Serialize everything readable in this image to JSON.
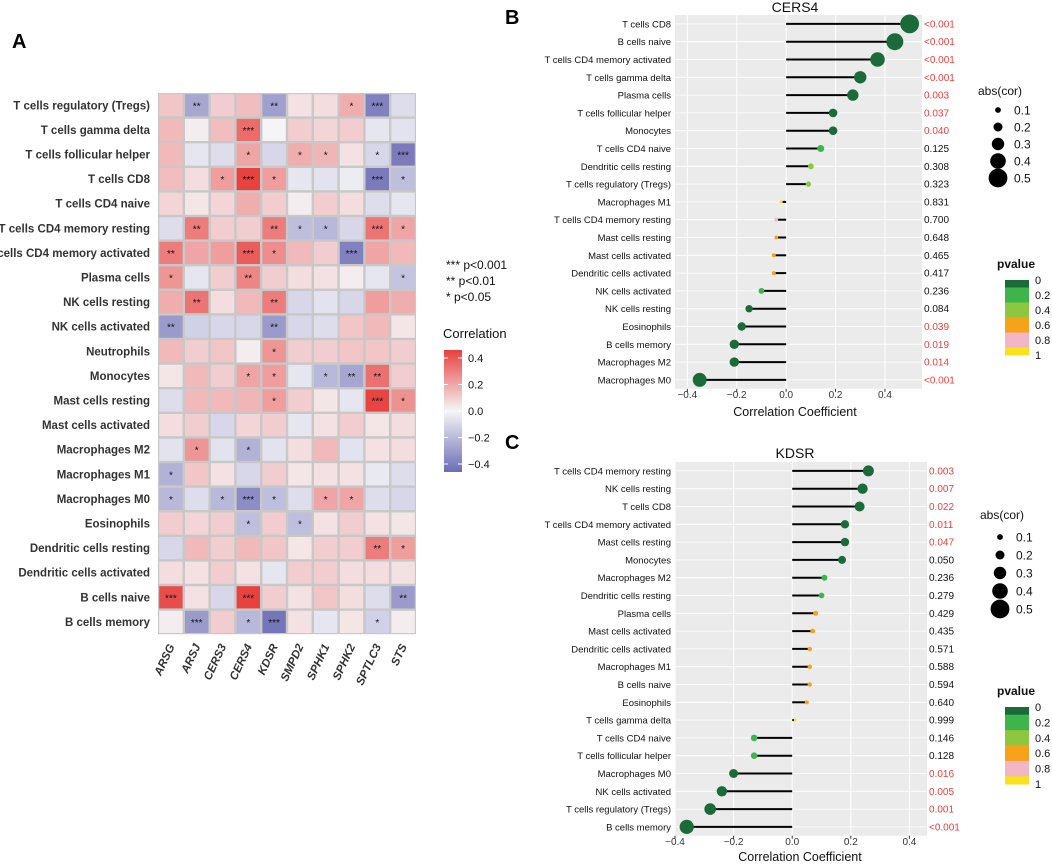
{
  "panels": {
    "a": "A",
    "b": "B",
    "c": "C"
  },
  "colors": {
    "negative": "#6C6CB4",
    "neutral": "#F5F5F8",
    "positive": "#E8413E",
    "grid_border": "#C8C8C8",
    "pvalue_sig": "#E8413E",
    "pvalue_ns": "#111111",
    "p_0": "#1B6B3A",
    "p_02": "#3DB54A",
    "p_04": "#8DC63F",
    "p_06": "#F7A21B",
    "p_08": "#F2B6C6",
    "p_1": "#F9E21B"
  },
  "chart_data": [
    {
      "type": "heatmap",
      "title": "",
      "rows": [
        "T cells regulatory (Tregs)",
        "T cells gamma delta",
        "T cells follicular helper",
        "T cells CD8",
        "T cells CD4 naive",
        "T cells CD4 memory resting",
        "T cells CD4 memory activated",
        "Plasma cells",
        "NK cells resting",
        "NK cells activated",
        "Neutrophils",
        "Monocytes",
        "Mast cells resting",
        "Mast cells activated",
        "Macrophages M2",
        "Macrophages M1",
        "Macrophages M0",
        "Eosinophils",
        "Dendritic cells resting",
        "Dendritic cells activated",
        "B cells naive",
        "B cells memory"
      ],
      "columns": [
        "ARSG",
        "ARSJ",
        "CERS3",
        "CERS4",
        "KDSR",
        "SMPD2",
        "SPHK1",
        "SPHK2",
        "SPTLC3",
        "STS"
      ],
      "values": [
        [
          0.12,
          -0.26,
          0.1,
          0.14,
          -0.28,
          0.05,
          0.06,
          0.18,
          -0.38,
          -0.08
        ],
        [
          0.15,
          0.02,
          0.14,
          0.34,
          0.0,
          0.1,
          0.08,
          0.1,
          -0.05,
          -0.06
        ],
        [
          0.15,
          -0.05,
          -0.08,
          0.2,
          -0.1,
          0.18,
          0.16,
          0.05,
          -0.1,
          -0.4
        ],
        [
          0.14,
          0.06,
          0.22,
          0.48,
          0.22,
          -0.05,
          -0.06,
          -0.03,
          -0.4,
          -0.18
        ],
        [
          0.08,
          0.04,
          0.08,
          0.18,
          0.1,
          0.02,
          0.1,
          0.06,
          -0.08,
          -0.05
        ],
        [
          -0.08,
          0.3,
          0.1,
          0.1,
          0.3,
          -0.18,
          -0.2,
          -0.1,
          0.32,
          0.2
        ],
        [
          0.3,
          0.2,
          0.22,
          0.38,
          0.26,
          0.15,
          0.1,
          -0.38,
          0.2,
          0.15
        ],
        [
          0.24,
          -0.05,
          0.1,
          0.28,
          0.1,
          0.06,
          0.05,
          0.02,
          -0.05,
          -0.16
        ],
        [
          0.18,
          0.32,
          0.06,
          0.15,
          0.3,
          -0.1,
          -0.06,
          -0.1,
          0.22,
          0.18
        ],
        [
          -0.3,
          -0.12,
          -0.1,
          -0.1,
          -0.3,
          -0.1,
          -0.08,
          0.12,
          0.15,
          0.04
        ],
        [
          0.15,
          0.1,
          0.12,
          0.02,
          0.24,
          0.1,
          0.1,
          0.12,
          0.12,
          0.1
        ],
        [
          0.04,
          0.15,
          0.1,
          0.2,
          0.22,
          -0.05,
          -0.2,
          -0.26,
          0.33,
          0.1
        ],
        [
          -0.08,
          0.15,
          0.15,
          0.16,
          0.22,
          0.1,
          0.04,
          -0.05,
          0.44,
          0.25
        ],
        [
          0.06,
          0.1,
          -0.1,
          0.08,
          0.1,
          -0.05,
          0.05,
          0.1,
          0.04,
          0.06
        ],
        [
          -0.06,
          0.24,
          -0.06,
          -0.22,
          -0.06,
          0.06,
          0.15,
          -0.06,
          0.05,
          0.06
        ],
        [
          -0.22,
          0.12,
          0.05,
          -0.1,
          0.1,
          0.04,
          0.05,
          0.05,
          -0.04,
          -0.08
        ],
        [
          -0.2,
          -0.08,
          -0.2,
          -0.34,
          -0.18,
          -0.08,
          0.2,
          0.2,
          -0.08,
          -0.1
        ],
        [
          0.1,
          0.08,
          0.1,
          -0.18,
          0.1,
          -0.18,
          0.05,
          0.1,
          0.05,
          0.04
        ],
        [
          -0.1,
          0.15,
          0.1,
          0.15,
          0.12,
          0.04,
          0.1,
          0.1,
          0.3,
          0.22
        ],
        [
          0.06,
          0.05,
          0.1,
          0.05,
          -0.05,
          0.1,
          0.1,
          0.06,
          0.06,
          0.05
        ],
        [
          0.42,
          0.05,
          -0.1,
          0.46,
          0.1,
          0.05,
          0.12,
          0.06,
          -0.08,
          -0.3
        ],
        [
          0.02,
          -0.3,
          0.1,
          -0.2,
          -0.42,
          0.05,
          -0.05,
          0.04,
          -0.12,
          0.02
        ]
      ],
      "stars": [
        [
          "",
          "**",
          "",
          "",
          "**",
          "",
          "",
          "*",
          "***",
          ""
        ],
        [
          "",
          "",
          "",
          "***",
          "",
          "",
          "",
          "",
          "",
          ""
        ],
        [
          "",
          "",
          "",
          "*",
          "",
          "*",
          "*",
          "",
          "*",
          "***"
        ],
        [
          "",
          "",
          "*",
          "***",
          "*",
          "",
          "",
          "",
          "***",
          "*"
        ],
        [
          "",
          "",
          "",
          "",
          "",
          "",
          "",
          "",
          "",
          ""
        ],
        [
          "",
          "**",
          "",
          "",
          "**",
          "*",
          "*",
          "",
          "***",
          "*"
        ],
        [
          "**",
          "",
          "",
          "***",
          "*",
          "",
          "",
          "***",
          "",
          ""
        ],
        [
          "*",
          "",
          "",
          "**",
          "",
          "",
          "",
          "",
          "",
          "*"
        ],
        [
          "",
          "**",
          "",
          "",
          "**",
          "",
          "",
          "",
          "",
          ""
        ],
        [
          "**",
          "",
          "",
          "",
          "**",
          "",
          "",
          "",
          "",
          ""
        ],
        [
          "",
          "",
          "",
          "",
          "*",
          "",
          "",
          "",
          "",
          ""
        ],
        [
          "",
          "",
          "",
          "*",
          "*",
          "",
          "*",
          "**",
          "**",
          ""
        ],
        [
          "",
          "",
          "",
          "",
          "*",
          "",
          "",
          "",
          "***",
          "*"
        ],
        [
          "",
          "",
          "",
          "",
          "",
          "",
          "",
          "",
          "",
          ""
        ],
        [
          "",
          "*",
          "",
          "*",
          "",
          "",
          "",
          "",
          "",
          ""
        ],
        [
          "*",
          "",
          "",
          "",
          "",
          "",
          "",
          "",
          "",
          ""
        ],
        [
          "*",
          "",
          "*",
          "***",
          "*",
          "",
          "*",
          "*",
          "",
          ""
        ],
        [
          "",
          "",
          "",
          "*",
          "",
          "*",
          "",
          "",
          "",
          ""
        ],
        [
          "",
          "",
          "",
          "",
          "",
          "",
          "",
          "",
          "**",
          "*"
        ],
        [
          "",
          "",
          "",
          "",
          "",
          "",
          "",
          "",
          "",
          ""
        ],
        [
          "***",
          "",
          "",
          "***",
          "",
          "",
          "",
          "",
          "",
          "**"
        ],
        [
          "",
          "***",
          "",
          "*",
          "***",
          "",
          "",
          "",
          "*",
          ""
        ]
      ],
      "legend": {
        "title": "Correlation",
        "ticks": [
          "0.4",
          "0.2",
          "0.0",
          "−0.2",
          "−0.4"
        ],
        "range": [
          -0.45,
          0.45
        ]
      },
      "significance": [
        "***  p<0.001",
        "**  p<0.01",
        "*  p<0.05"
      ]
    },
    {
      "type": "lollipop",
      "title": "CERS4",
      "xlabel": "Correlation Coefficient",
      "xlim": [
        -0.45,
        0.55
      ],
      "xticks": [
        "−0.4",
        "−0.2",
        "0.0",
        "0.2",
        "0.4"
      ],
      "xtick_values": [
        -0.4,
        -0.2,
        0,
        0.2,
        0.4
      ],
      "categories": [
        "T cells CD8",
        "B cells naive",
        "T cells CD4 memory activated",
        "T cells gamma delta",
        "Plasma cells",
        "T cells follicular helper",
        "Monocytes",
        "T cells CD4 naive",
        "Dendritic cells resting",
        "T cells regulatory (Tregs)",
        "Macrophages M1",
        "T cells CD4 memory resting",
        "Mast cells resting",
        "Mast cells activated",
        "Dendritic cells activated",
        "NK cells activated",
        "NK cells resting",
        "Eosinophils",
        "B cells memory",
        "Macrophages M2",
        "Macrophages M0"
      ],
      "values": [
        0.5,
        0.44,
        0.37,
        0.3,
        0.27,
        0.19,
        0.19,
        0.14,
        0.1,
        0.09,
        -0.02,
        -0.04,
        -0.04,
        -0.05,
        -0.05,
        -0.1,
        -0.15,
        -0.18,
        -0.21,
        -0.21,
        -0.35
      ],
      "pvalues": [
        0.0005,
        0.0005,
        0.0005,
        0.0005,
        0.003,
        0.037,
        0.04,
        0.125,
        0.308,
        0.323,
        0.831,
        0.7,
        0.648,
        0.465,
        0.417,
        0.236,
        0.084,
        0.039,
        0.019,
        0.014,
        0.0005
      ],
      "pvalue_labels": [
        "<0.001",
        "<0.001",
        "<0.001",
        "<0.001",
        "0.003",
        "0.037",
        "0.040",
        "0.125",
        "0.308",
        "0.323",
        "0.831",
        "0.700",
        "0.648",
        "0.465",
        "0.417",
        "0.236",
        "0.084",
        "0.039",
        "0.019",
        "0.014",
        "<0.001"
      ],
      "size_legend": {
        "title": "abs(cor)",
        "labels": [
          "0.1",
          "0.2",
          "0.3",
          "0.4",
          "0.5"
        ],
        "values": [
          0.1,
          0.2,
          0.3,
          0.4,
          0.5
        ]
      },
      "color_legend": {
        "title": "pvalue",
        "labels": [
          "0",
          "0.2",
          "0.4",
          "0.6",
          "0.8",
          "1"
        ]
      }
    },
    {
      "type": "lollipop",
      "title": "KDSR",
      "xlabel": "Correlation Coefficient",
      "xlim": [
        -0.4,
        0.46
      ],
      "xticks": [
        "−0.4",
        "−0.2",
        "0.0",
        "0.2",
        "0.4"
      ],
      "xtick_values": [
        -0.4,
        -0.2,
        0,
        0.2,
        0.4
      ],
      "categories": [
        "T cells CD4 memory resting",
        "NK cells resting",
        "T cells CD8",
        "T cells CD4 memory activated",
        "Mast cells resting",
        "Monocytes",
        "Macrophages M2",
        "Dendritic cells resting",
        "Plasma cells",
        "Mast cells activated",
        "Dendritic cells activated",
        "Macrophages M1",
        "B cells naive",
        "Eosinophils",
        "T cells gamma delta",
        "T cells CD4 naive",
        "T cells follicular helper",
        "Macrophages M0",
        "NK cells activated",
        "T cells regulatory (Tregs)",
        "B cells memory"
      ],
      "values": [
        0.26,
        0.24,
        0.23,
        0.18,
        0.18,
        0.17,
        0.11,
        0.1,
        0.08,
        0.07,
        0.06,
        0.06,
        0.06,
        0.05,
        0.01,
        -0.13,
        -0.13,
        -0.2,
        -0.24,
        -0.28,
        -0.36
      ],
      "pvalues": [
        0.003,
        0.007,
        0.022,
        0.011,
        0.047,
        0.05,
        0.236,
        0.279,
        0.429,
        0.435,
        0.571,
        0.588,
        0.594,
        0.64,
        0.999,
        0.146,
        0.128,
        0.016,
        0.005,
        0.001,
        0.0005
      ],
      "pvalue_labels": [
        "0.003",
        "0.007",
        "0.022",
        "0.011",
        "0.047",
        "0.050",
        "0.236",
        "0.279",
        "0.429",
        "0.435",
        "0.571",
        "0.588",
        "0.594",
        "0.640",
        "0.999",
        "0.146",
        "0.128",
        "0.016",
        "0.005",
        "0.001",
        "<0.001"
      ],
      "size_legend": {
        "title": "abs(cor)",
        "labels": [
          "0.1",
          "0.2",
          "0.3",
          "0.4",
          "0.5"
        ],
        "values": [
          0.1,
          0.2,
          0.3,
          0.4,
          0.5
        ]
      },
      "color_legend": {
        "title": "pvalue",
        "labels": [
          "0",
          "0.2",
          "0.4",
          "0.6",
          "0.8",
          "1"
        ]
      }
    }
  ]
}
